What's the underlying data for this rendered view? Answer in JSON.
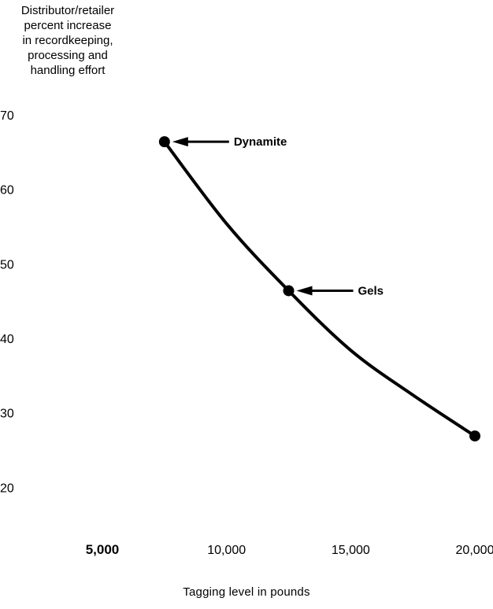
{
  "chart_data": {
    "type": "line",
    "title": "",
    "ylabel_lines": [
      "Distributor/retailer",
      "percent increase",
      "in  recordkeeping,",
      "processing  and",
      "handling  effort"
    ],
    "xlabel": "Tagging  level  in  pounds",
    "x_ticks": [
      {
        "value": 5000,
        "label": "5,000",
        "bold": true
      },
      {
        "value": 10000,
        "label": "10,000",
        "bold": false
      },
      {
        "value": 15000,
        "label": "15,000",
        "bold": false
      },
      {
        "value": 20000,
        "label": "20,000",
        "bold": false
      }
    ],
    "y_ticks": [
      {
        "value": 70,
        "label": "70"
      },
      {
        "value": 60,
        "label": "60"
      },
      {
        "value": 50,
        "label": "50"
      },
      {
        "value": 40,
        "label": "40"
      },
      {
        "value": 30,
        "label": "30"
      },
      {
        "value": 20,
        "label": "20"
      }
    ],
    "xlim": [
      5000,
      20000
    ],
    "ylim": [
      10,
      70
    ],
    "grid": false,
    "series": [
      {
        "x": [
          7500,
          10000,
          12500,
          15000,
          17500,
          20000
        ],
        "y": [
          66.5,
          55.5,
          46.5,
          38.5,
          32.5,
          27
        ]
      }
    ],
    "annotations": [
      {
        "label": "Dynamite",
        "x": 7500,
        "y": 66.5
      },
      {
        "label": "Gels",
        "x": 12500,
        "y": 46.5
      }
    ],
    "end_point": {
      "x": 20000,
      "y": 27
    }
  }
}
